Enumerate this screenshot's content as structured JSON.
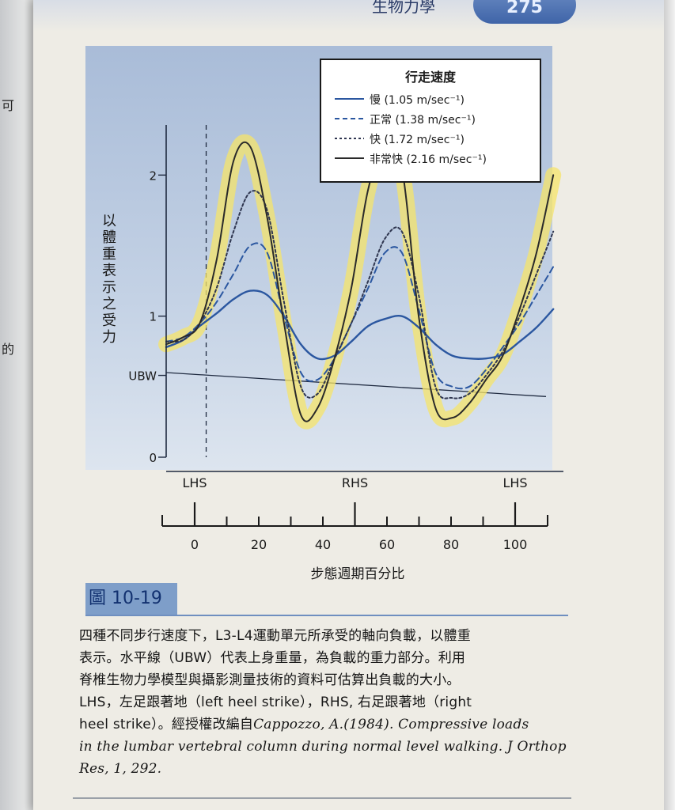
{
  "header": {
    "page_number": "275",
    "title_fragment": "生物力學"
  },
  "left_margin_chars": [
    "可",
    "的"
  ],
  "figure": {
    "label": "圖 10-19",
    "caption_lines": [
      "四種不同步行速度下，L3-L4運動單元所承受的軸向負載，以體重",
      "表示。水平線（UBW）代表上身重量，為負載的重力部分。利用",
      "脊椎生物力學模型與攝影測量技術的資料可估算出負載的大小。",
      "LHS，左足跟著地（left heel strike），RHS, 右足跟著地（right",
      "heel strike）。經授權改編自"
    ],
    "citation_lines": [
      "Cappozzo, A.(1984). Compressive loads",
      "in the lumbar vertebral column during normal level walking. J Orthop",
      "Res, 1, 292."
    ]
  },
  "chart_data": {
    "type": "line",
    "legend": {
      "title": "行走速度",
      "placement": "top-right"
    },
    "ylabel": "以體重表示之受力",
    "xlabel": "步態週期百分比",
    "xlim": [
      -10,
      108
    ],
    "ylim": [
      0,
      2.4
    ],
    "yticks": [
      {
        "value": 0,
        "label": "0"
      },
      {
        "value": 0.58,
        "label": "UBW"
      },
      {
        "value": 1,
        "label": "1"
      },
      {
        "value": 2,
        "label": "2"
      }
    ],
    "xticks": [
      0,
      10,
      20,
      30,
      40,
      50,
      60,
      70,
      80,
      90,
      100
    ],
    "xtick_labels": [
      {
        "value": 0,
        "label": "0"
      },
      {
        "value": 20,
        "label": "20"
      },
      {
        "value": 40,
        "label": "40"
      },
      {
        "value": 60,
        "label": "60"
      },
      {
        "value": 80,
        "label": "80"
      },
      {
        "value": 100,
        "label": "100"
      }
    ],
    "events": [
      {
        "x": 0,
        "label": "LHS"
      },
      {
        "x": 50,
        "label": "RHS"
      },
      {
        "x": 100,
        "label": "LHS"
      }
    ],
    "ubw_line": {
      "start": 0.6,
      "end": 0.43
    },
    "lhs_dashed_x": 0,
    "series": [
      {
        "name": "慢 (1.05 m/sec⁻¹)",
        "color": "#2b57a0",
        "style": "solid",
        "x": [
          -10,
          -5,
          0,
          5,
          10,
          15,
          20,
          25,
          30,
          35,
          40,
          45,
          50,
          55,
          60,
          65,
          70,
          75,
          80,
          85,
          90,
          95,
          100,
          105
        ],
        "y": [
          0.78,
          0.83,
          0.93,
          1.02,
          1.12,
          1.18,
          1.15,
          1.0,
          0.8,
          0.7,
          0.72,
          0.82,
          0.93,
          0.98,
          1.0,
          0.92,
          0.8,
          0.72,
          0.7,
          0.7,
          0.73,
          0.82,
          0.92,
          1.05
        ]
      },
      {
        "name": "正常 (1.38 m/sec⁻¹)",
        "color": "#2b57a0",
        "style": "dashed",
        "x": [
          -10,
          -5,
          0,
          5,
          10,
          15,
          20,
          25,
          30,
          35,
          40,
          45,
          50,
          55,
          60,
          65,
          70,
          75,
          80,
          85,
          90,
          95,
          100,
          105
        ],
        "y": [
          0.82,
          0.85,
          0.95,
          1.1,
          1.3,
          1.5,
          1.45,
          1.0,
          0.6,
          0.55,
          0.7,
          0.95,
          1.2,
          1.45,
          1.45,
          1.05,
          0.6,
          0.5,
          0.5,
          0.62,
          0.78,
          0.95,
          1.15,
          1.35
        ]
      },
      {
        "name": "快 (1.72 m/sec⁻¹)",
        "color": "#2f3650",
        "style": "dotted",
        "x": [
          -10,
          -5,
          0,
          5,
          10,
          15,
          20,
          25,
          30,
          35,
          40,
          45,
          50,
          55,
          60,
          65,
          70,
          75,
          80,
          85,
          90,
          95,
          100,
          105
        ],
        "y": [
          0.82,
          0.83,
          0.95,
          1.2,
          1.6,
          1.88,
          1.75,
          1.1,
          0.5,
          0.45,
          0.7,
          0.95,
          1.25,
          1.55,
          1.6,
          1.15,
          0.5,
          0.42,
          0.45,
          0.58,
          0.75,
          1.0,
          1.3,
          1.6
        ]
      },
      {
        "name": "非常快 (2.16 m/sec⁻¹)",
        "color": "#2a2a2a",
        "style": "solid",
        "x": [
          -10,
          -5,
          0,
          5,
          10,
          15,
          20,
          25,
          30,
          35,
          40,
          45,
          50,
          55,
          60,
          65,
          70,
          75,
          80,
          85,
          90,
          95,
          100,
          105
        ],
        "y": [
          0.8,
          0.85,
          0.95,
          1.4,
          2.1,
          2.2,
          1.7,
          0.95,
          0.3,
          0.35,
          0.7,
          1.2,
          1.9,
          2.2,
          2.05,
          1.0,
          0.35,
          0.28,
          0.38,
          0.55,
          0.72,
          1.05,
          1.45,
          2.0
        ]
      }
    ],
    "highlight_color": "#f5e46a"
  }
}
